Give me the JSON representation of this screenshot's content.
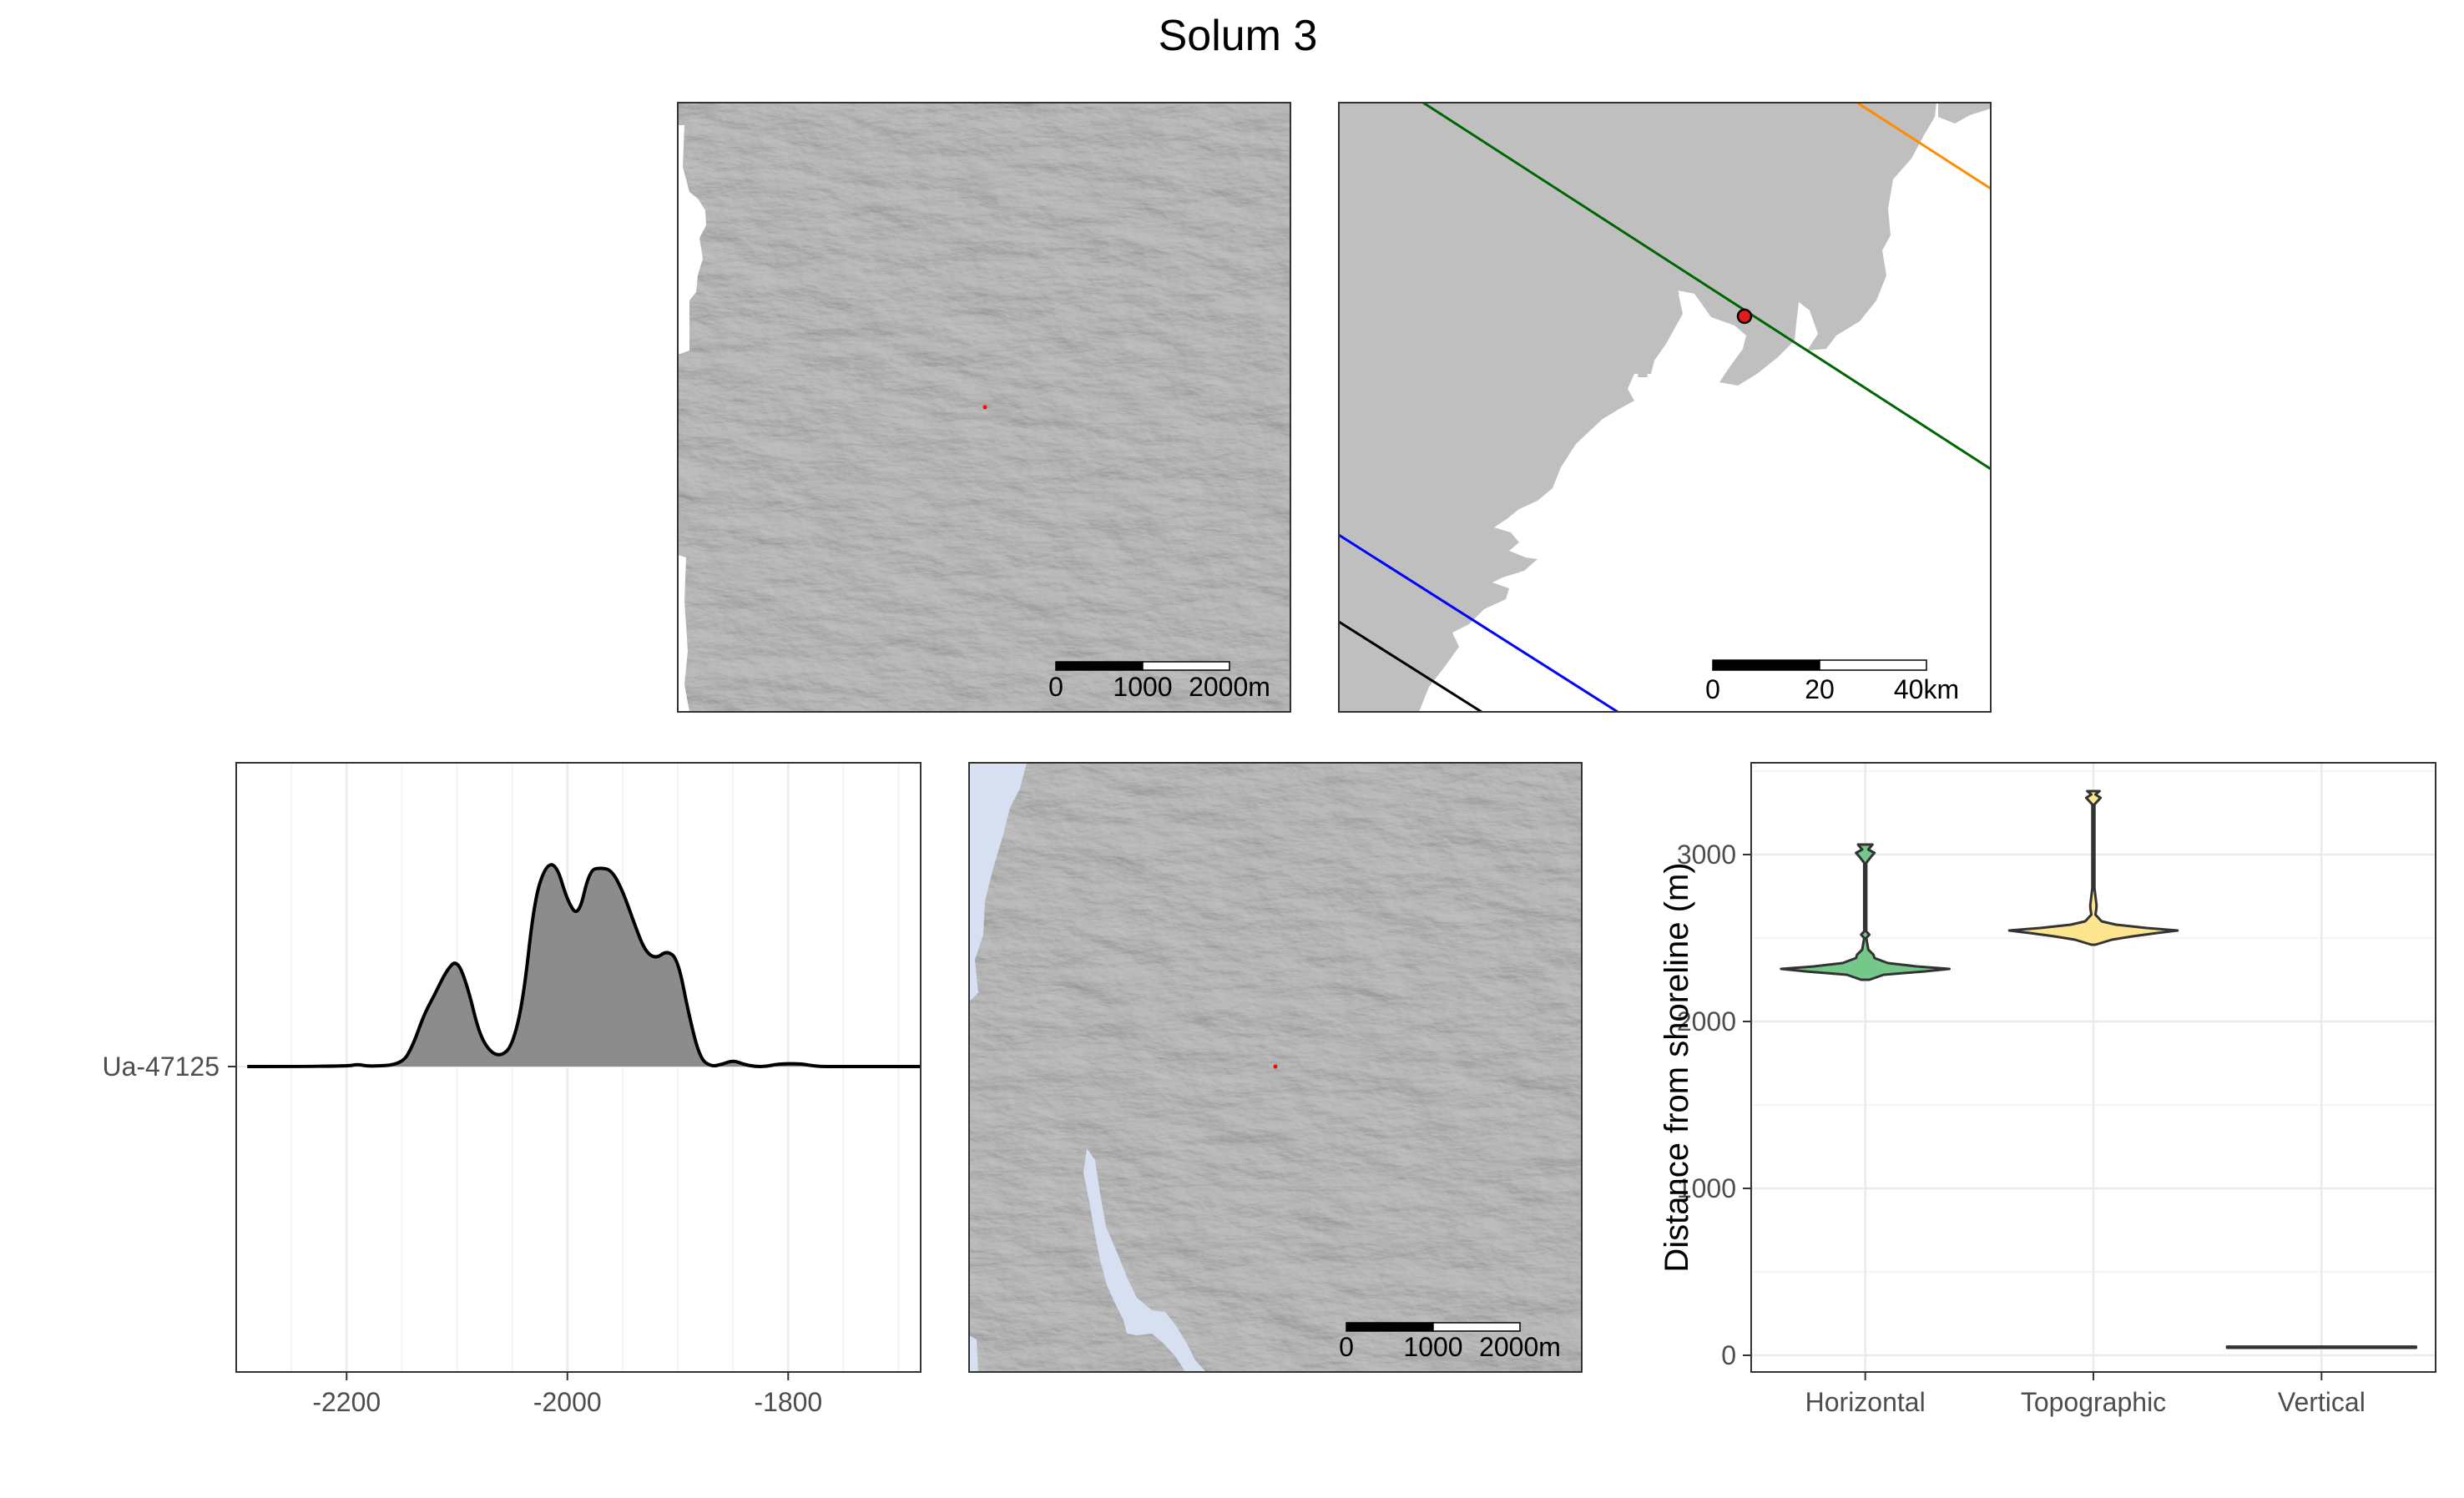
{
  "figure": {
    "title": "Solum 3"
  },
  "panels": {
    "hillshade_top": {
      "type": "hillshade-map",
      "scale_bar": {
        "labels": [
          "0",
          "1000",
          "2000m"
        ]
      },
      "site_marker_color": "#ff0000"
    },
    "overview_map": {
      "type": "map",
      "land_color": "#bfbfbf",
      "scale_bar": {
        "labels": [
          "0",
          "20",
          "40km"
        ]
      },
      "isobases": [
        {
          "color": "#ff8c00"
        },
        {
          "color": "#006400"
        },
        {
          "color": "#0000ff"
        },
        {
          "color": "#000000"
        }
      ],
      "site_marker": {
        "fill": "#e41a1c",
        "stroke": "#000000"
      }
    },
    "hillshade_bottom": {
      "type": "hillshade-map",
      "water_color": "#d6e0f0",
      "scale_bar": {
        "labels": [
          "0",
          "1000",
          "2000m"
        ]
      },
      "site_marker_color": "#ff0000"
    }
  },
  "chart_data": [
    {
      "type": "area",
      "title": "",
      "xlabel": "",
      "ylabel": "",
      "xlim": [
        -2300,
        -1680
      ],
      "x_ticks": [
        -2200,
        -2000,
        -1800
      ],
      "x_tick_labels": [
        "-2200",
        "-2000",
        "-1800"
      ],
      "y_categories": [
        "Ua-47125"
      ],
      "grid": true,
      "fill_color": "#8c8c8c",
      "series": [
        {
          "category": "Ua-47125",
          "x": [
            -2290,
            -2200,
            -2190,
            -2180,
            -2150,
            -2140,
            -2130,
            -2120,
            -2110,
            -2100,
            -2090,
            -2080,
            -2070,
            -2060,
            -2050,
            -2040,
            -2030,
            -2020,
            -2010,
            -2000,
            -1990,
            -1980,
            -1970,
            -1960,
            -1950,
            -1940,
            -1930,
            -1920,
            -1910,
            -1900,
            -1890,
            -1880,
            -1870,
            -1860,
            -1850,
            -1840,
            -1830,
            -1820,
            -1810,
            -1790,
            -1780,
            -1770,
            -1760,
            -1740,
            -1680
          ],
          "density": [
            0,
            0,
            0.012,
            0,
            0.01,
            0.1,
            0.25,
            0.35,
            0.46,
            0.52,
            0.38,
            0.16,
            0.07,
            0.05,
            0.1,
            0.32,
            0.8,
            0.97,
            0.98,
            0.8,
            0.72,
            0.95,
            0.96,
            0.95,
            0.85,
            0.7,
            0.56,
            0.52,
            0.56,
            0.52,
            0.25,
            0.04,
            0,
            0.01,
            0.03,
            0.01,
            0,
            0,
            0.012,
            0.015,
            0.005,
            0,
            0,
            0,
            0
          ]
        }
      ]
    },
    {
      "type": "violin",
      "title": "",
      "xlabel": "",
      "ylabel": "Distance from shoreline (m)",
      "ylim": [
        -100,
        3550
      ],
      "y_ticks": [
        0,
        1000,
        2000,
        3000
      ],
      "y_tick_labels": [
        "0",
        "1000",
        "2000",
        "3000"
      ],
      "grid": true,
      "categories": [
        "Horizontal",
        "Topographic",
        "Vertical"
      ],
      "series": [
        {
          "name": "Horizontal",
          "fill": "#74c98a",
          "profile": [
            [
              2250,
              0.04
            ],
            [
              2280,
              0.18
            ],
            [
              2300,
              0.58
            ],
            [
              2315,
              0.82
            ],
            [
              2330,
              0.5
            ],
            [
              2350,
              0.22
            ],
            [
              2380,
              0.09
            ],
            [
              2400,
              0.08
            ],
            [
              2430,
              0.03
            ],
            [
              2500,
              0.01
            ],
            [
              2520,
              0.04
            ],
            [
              2540,
              0.01
            ],
            [
              2700,
              0.01
            ],
            [
              2950,
              0.01
            ],
            [
              2990,
              0.06
            ],
            [
              3010,
              0.09
            ],
            [
              3030,
              0.03
            ],
            [
              3060,
              0.07
            ]
          ]
        },
        {
          "name": "Topographic",
          "fill": "#fde48f",
          "profile": [
            [
              2460,
              0.02
            ],
            [
              2490,
              0.18
            ],
            [
              2510,
              0.38
            ],
            [
              2530,
              0.62
            ],
            [
              2545,
              0.82
            ],
            [
              2560,
              0.52
            ],
            [
              2580,
              0.22
            ],
            [
              2600,
              0.08
            ],
            [
              2640,
              0.02
            ],
            [
              2680,
              0.03
            ],
            [
              2700,
              0.03
            ],
            [
              2800,
              0.01
            ],
            [
              3300,
              0.01
            ],
            [
              3320,
              0.04
            ],
            [
              3340,
              0.07
            ],
            [
              3360,
              0.02
            ],
            [
              3380,
              0.06
            ]
          ]
        },
        {
          "name": "Vertical",
          "fill": "#555555",
          "profile": [
            [
              45,
              0.92
            ],
            [
              52,
              0.92
            ]
          ]
        }
      ]
    }
  ]
}
